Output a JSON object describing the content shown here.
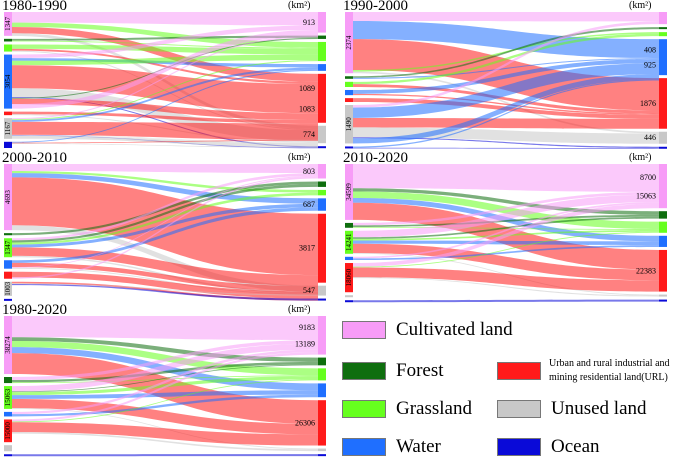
{
  "unit": "(km²)",
  "categories": [
    {
      "id": "cult",
      "label": "Cultivated land",
      "color": "#f79cf7"
    },
    {
      "id": "forest",
      "label": "Forest",
      "color": "#0e6e0e"
    },
    {
      "id": "grass",
      "label": "Grassland",
      "color": "#66ff1e"
    },
    {
      "id": "water",
      "label": "Water",
      "color": "#1f6fff"
    },
    {
      "id": "url",
      "label": "Urban and rural industrial and mining residential land(URL)",
      "label_line1": "Urban and rural industrial and",
      "label_line2": "mining residential land(URL)",
      "color": "#ff1a1a"
    },
    {
      "id": "unused",
      "label": "Unused land",
      "color": "#c8c8c8"
    },
    {
      "id": "ocean",
      "label": "Ocean",
      "color": "#0a0ad8"
    }
  ],
  "chart_data": [
    {
      "type": "sankey",
      "title": "1980-1990",
      "left_nodes": [
        {
          "cat": "cult",
          "value": 1347,
          "label": "1347"
        },
        {
          "cat": "forest",
          "value": 150,
          "label": ""
        },
        {
          "cat": "grass",
          "value": 400,
          "label": ""
        },
        {
          "cat": "water",
          "value": 3054,
          "label": "3054"
        },
        {
          "cat": "url",
          "value": 200,
          "label": ""
        },
        {
          "cat": "unused",
          "value": 1167,
          "label": "1167"
        },
        {
          "cat": "ocean",
          "value": 350,
          "label": ""
        }
      ],
      "right_nodes": [
        {
          "cat": "cult",
          "value": 913,
          "label": "913"
        },
        {
          "cat": "forest",
          "value": 150,
          "label": ""
        },
        {
          "cat": "grass",
          "value": 850,
          "label": ""
        },
        {
          "cat": "water",
          "value": 300,
          "label": ""
        },
        {
          "cat": "url",
          "value": 2172,
          "label": "1089 / 1083",
          "label_a": "1089",
          "label_b": "1083"
        },
        {
          "cat": "unused",
          "value": 774,
          "label": "774"
        },
        {
          "cat": "ocean",
          "value": 80,
          "label": ""
        }
      ],
      "flows": [
        [
          "cult",
          "cult",
          600
        ],
        [
          "cult",
          "grass",
          250
        ],
        [
          "cult",
          "url",
          350
        ],
        [
          "cult",
          "unused",
          147
        ],
        [
          "forest",
          "forest",
          100
        ],
        [
          "forest",
          "grass",
          50
        ],
        [
          "grass",
          "grass",
          250
        ],
        [
          "grass",
          "url",
          100
        ],
        [
          "grass",
          "unused",
          50
        ],
        [
          "water",
          "cult",
          200
        ],
        [
          "water",
          "water",
          150
        ],
        [
          "water",
          "grass",
          250
        ],
        [
          "water",
          "url",
          1300
        ],
        [
          "water",
          "unused",
          500
        ],
        [
          "water",
          "ocean",
          50
        ],
        [
          "water",
          "forest",
          50
        ],
        [
          "water",
          "url",
          300
        ],
        [
          "water",
          "cult",
          254
        ],
        [
          "url",
          "url",
          150
        ],
        [
          "url",
          "unused",
          50
        ],
        [
          "unused",
          "cult",
          59
        ],
        [
          "unused",
          "grass",
          50
        ],
        [
          "unused",
          "water",
          100
        ],
        [
          "unused",
          "url",
          734
        ],
        [
          "unused",
          "unused",
          24
        ],
        [
          "unused",
          "ocean",
          30
        ],
        [
          "unused",
          "unused",
          170
        ],
        [
          "ocean",
          "water",
          50
        ],
        [
          "ocean",
          "url",
          38
        ],
        [
          "ocean",
          "unused",
          33
        ],
        [
          "ocean",
          "grass",
          0
        ]
      ]
    },
    {
      "type": "sankey",
      "title": "1990-2000",
      "left_nodes": [
        {
          "cat": "cult",
          "value": 2374,
          "label": "2374"
        },
        {
          "cat": "forest",
          "value": 100,
          "label": ""
        },
        {
          "cat": "grass",
          "value": 200,
          "label": ""
        },
        {
          "cat": "water",
          "value": 200,
          "label": ""
        },
        {
          "cat": "url",
          "value": 150,
          "label": ""
        },
        {
          "cat": "unused",
          "value": 1490,
          "label": "1490"
        },
        {
          "cat": "ocean",
          "value": 60,
          "label": ""
        }
      ],
      "right_nodes": [
        {
          "cat": "cult",
          "value": 450,
          "label": ""
        },
        {
          "cat": "forest",
          "value": 60,
          "label": ""
        },
        {
          "cat": "grass",
          "value": 150,
          "label": ""
        },
        {
          "cat": "water",
          "value": 1333,
          "label": "408 / 925",
          "label_a": "408",
          "label_b": "925"
        },
        {
          "cat": "url",
          "value": 1876,
          "label": "1876"
        },
        {
          "cat": "unused",
          "value": 446,
          "label": "446"
        },
        {
          "cat": "ocean",
          "value": 60,
          "label": ""
        }
      ],
      "flows": [
        [
          "cult",
          "cult",
          350
        ],
        [
          "cult",
          "water",
          700
        ],
        [
          "cult",
          "url",
          1200
        ],
        [
          "cult",
          "grass",
          60
        ],
        [
          "cult",
          "unused",
          64
        ],
        [
          "forest",
          "forest",
          60
        ],
        [
          "forest",
          "water",
          40
        ],
        [
          "grass",
          "grass",
          90
        ],
        [
          "grass",
          "url",
          110
        ],
        [
          "water",
          "water",
          150
        ],
        [
          "water",
          "url",
          50
        ],
        [
          "url",
          "url",
          150
        ],
        [
          "unused",
          "cult",
          100
        ],
        [
          "unused",
          "water",
          403
        ],
        [
          "unused",
          "url",
          366
        ],
        [
          "unused",
          "unused",
          382
        ],
        [
          "unused",
          "ocean",
          39
        ],
        [
          "unused",
          "water",
          200
        ],
        [
          "ocean",
          "water",
          40
        ],
        [
          "ocean",
          "ocean",
          20
        ]
      ]
    },
    {
      "type": "sankey",
      "title": "2000-2010",
      "left_nodes": [
        {
          "cat": "cult",
          "value": 4693,
          "label": "4693"
        },
        {
          "cat": "forest",
          "value": 150,
          "label": ""
        },
        {
          "cat": "grass",
          "value": 1347,
          "label": "1347"
        },
        {
          "cat": "water",
          "value": 600,
          "label": ""
        },
        {
          "cat": "url",
          "value": 500,
          "label": ""
        },
        {
          "cat": "unused",
          "value": 1003,
          "label": "1003"
        },
        {
          "cat": "ocean",
          "value": 80,
          "label": ""
        }
      ],
      "right_nodes": [
        {
          "cat": "cult",
          "value": 803,
          "label": "803"
        },
        {
          "cat": "forest",
          "value": 300,
          "label": ""
        },
        {
          "cat": "grass",
          "value": 300,
          "label": ""
        },
        {
          "cat": "water",
          "value": 687,
          "label": "687"
        },
        {
          "cat": "url",
          "value": 3817,
          "label": "3817"
        },
        {
          "cat": "unused",
          "value": 547,
          "label": "547"
        },
        {
          "cat": "ocean",
          "value": 80,
          "label": ""
        }
      ],
      "flows": [
        [
          "cult",
          "cult",
          500
        ],
        [
          "cult",
          "grass",
          150
        ],
        [
          "cult",
          "water",
          300
        ],
        [
          "cult",
          "url",
          3400
        ],
        [
          "cult",
          "unused",
          343
        ],
        [
          "forest",
          "forest",
          150
        ],
        [
          "grass",
          "cult",
          150
        ],
        [
          "grass",
          "forest",
          150
        ],
        [
          "grass",
          "grass",
          150
        ],
        [
          "grass",
          "water",
          200
        ],
        [
          "grass",
          "url",
          600
        ],
        [
          "grass",
          "unused",
          97
        ],
        [
          "water",
          "water",
          187
        ],
        [
          "water",
          "url",
          300
        ],
        [
          "water",
          "cult",
          53
        ],
        [
          "water",
          "unused",
          60
        ],
        [
          "url",
          "url",
          400
        ],
        [
          "url",
          "cult",
          100
        ],
        [
          "unused",
          "cult",
          0
        ],
        [
          "unused",
          "url",
          117
        ],
        [
          "unused",
          "unused",
          47
        ],
        [
          "unused",
          "ocean",
          80
        ],
        [
          "unused",
          "cult",
          0
        ],
        [
          "ocean",
          "cult",
          0
        ]
      ]
    },
    {
      "type": "sankey",
      "title": "2010-2020",
      "left_nodes": [
        {
          "cat": "cult",
          "value": 34599,
          "label": "34599"
        },
        {
          "cat": "forest",
          "value": 3000,
          "label": ""
        },
        {
          "cat": "grass",
          "value": 14241,
          "label": "14241"
        },
        {
          "cat": "water",
          "value": 2000,
          "label": ""
        },
        {
          "cat": "url",
          "value": 18060,
          "label": "18060"
        },
        {
          "cat": "unused",
          "value": 800,
          "label": ""
        },
        {
          "cat": "ocean",
          "value": 300,
          "label": ""
        }
      ],
      "right_nodes": [
        {
          "cat": "cult",
          "value": 23763,
          "label": "8700 / 15063",
          "label_a": "8700",
          "label_b": "15063"
        },
        {
          "cat": "forest",
          "value": 4000,
          "label": ""
        },
        {
          "cat": "grass",
          "value": 6000,
          "label": ""
        },
        {
          "cat": "water",
          "value": 6000,
          "label": ""
        },
        {
          "cat": "url",
          "value": 22383,
          "label": "22383"
        },
        {
          "cat": "unused",
          "value": 1000,
          "label": ""
        },
        {
          "cat": "ocean",
          "value": 300,
          "label": ""
        }
      ],
      "flows": [
        [
          "cult",
          "cult",
          15000
        ],
        [
          "cult",
          "forest",
          2000
        ],
        [
          "cult",
          "grass",
          4000
        ],
        [
          "cult",
          "water",
          3000
        ],
        [
          "cult",
          "url",
          10599
        ],
        [
          "forest",
          "cult",
          1500
        ],
        [
          "forest",
          "forest",
          1000
        ],
        [
          "forest",
          "grass",
          500
        ],
        [
          "grass",
          "cult",
          4000
        ],
        [
          "grass",
          "forest",
          1000
        ],
        [
          "grass",
          "grass",
          1000
        ],
        [
          "grass",
          "water",
          2000
        ],
        [
          "grass",
          "url",
          5741
        ],
        [
          "grass",
          "unused",
          500
        ],
        [
          "water",
          "cult",
          1000
        ],
        [
          "water",
          "water",
          1000
        ],
        [
          "url",
          "cult",
          2263
        ],
        [
          "url",
          "grass",
          500
        ],
        [
          "url",
          "url",
          6043
        ],
        [
          "url",
          "unused",
          500
        ],
        [
          "url",
          "cult",
          0
        ],
        [
          "unused",
          "url",
          0
        ],
        [
          "unused",
          "cult",
          0
        ],
        [
          "unused",
          "water",
          0
        ],
        [
          "unused",
          "url",
          0
        ],
        [
          "ocean",
          "ocean",
          300
        ]
      ]
    },
    {
      "type": "sankey",
      "title": "1980-2020",
      "left_nodes": [
        {
          "cat": "cult",
          "value": 38274,
          "label": "38274"
        },
        {
          "cat": "forest",
          "value": 4000,
          "label": ""
        },
        {
          "cat": "grass",
          "value": 15063,
          "label": "15063"
        },
        {
          "cat": "water",
          "value": 3000,
          "label": ""
        },
        {
          "cat": "url",
          "value": 15000,
          "label": "15000"
        },
        {
          "cat": "unused",
          "value": 4000,
          "label": ""
        },
        {
          "cat": "ocean",
          "value": 500,
          "label": ""
        }
      ],
      "right_nodes": [
        {
          "cat": "cult",
          "value": 22372,
          "label": "9183 / 13189",
          "label_a": "9183",
          "label_b": "13189"
        },
        {
          "cat": "forest",
          "value": 4500,
          "label": ""
        },
        {
          "cat": "grass",
          "value": 7000,
          "label": ""
        },
        {
          "cat": "water",
          "value": 8000,
          "label": ""
        },
        {
          "cat": "url",
          "value": 26306,
          "label": "26306"
        },
        {
          "cat": "unused",
          "value": 1500,
          "label": ""
        },
        {
          "cat": "ocean",
          "value": 500,
          "label": ""
        }
      ],
      "flows": [
        [
          "cult",
          "cult",
          14000
        ],
        [
          "cult",
          "forest",
          2500
        ],
        [
          "cult",
          "grass",
          4000
        ],
        [
          "cult",
          "water",
          4000
        ],
        [
          "cult",
          "url",
          13774
        ],
        [
          "forest",
          "cult",
          2000
        ],
        [
          "forest",
          "forest",
          1500
        ],
        [
          "forest",
          "grass",
          500
        ],
        [
          "grass",
          "cult",
          3500
        ],
        [
          "grass",
          "forest",
          500
        ],
        [
          "grass",
          "grass",
          2000
        ],
        [
          "grass",
          "water",
          2500
        ],
        [
          "grass",
          "url",
          6063
        ],
        [
          "grass",
          "unused",
          500
        ],
        [
          "water",
          "cult",
          1500
        ],
        [
          "water",
          "water",
          1500
        ],
        [
          "url",
          "cult",
          1372
        ],
        [
          "url",
          "grass",
          500
        ],
        [
          "url",
          "url",
          6469
        ],
        [
          "url",
          "unused",
          1000
        ],
        [
          "url",
          "cult",
          0
        ],
        [
          "unused",
          "url",
          0
        ],
        [
          "unused",
          "water",
          0
        ],
        [
          "unused",
          "cult",
          0
        ],
        [
          "unused",
          "grass",
          0
        ],
        [
          "ocean",
          "ocean",
          500
        ]
      ]
    }
  ]
}
